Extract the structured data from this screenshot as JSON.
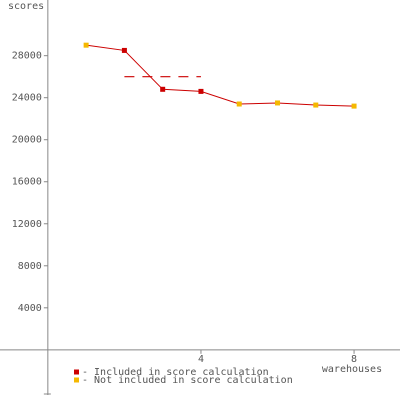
{
  "chart_data": {
    "type": "line",
    "y_label": "scores",
    "x_label": "warehouses",
    "x": [
      1,
      2,
      3,
      4,
      5,
      6,
      7,
      8
    ],
    "series": [
      {
        "color": "#cc0000",
        "values": [
          29000,
          28500,
          24800,
          24600,
          23400,
          23500,
          23300,
          23200
        ],
        "point_groups": [
          1,
          0,
          0,
          0,
          1,
          1,
          1,
          1
        ]
      }
    ],
    "legend": [
      {
        "name": "- Included in score calculation",
        "color": "#cc0000"
      },
      {
        "name": "- Not included in score calculation",
        "color": "#f5b800"
      }
    ],
    "score_line": {
      "value": 26000,
      "x": [
        2,
        4
      ],
      "color": "#cc0000"
    },
    "xlim": [
      -1.25,
      9.2
    ],
    "ylim": [
      -4300,
      33300
    ],
    "xticks": [
      4,
      8
    ],
    "yticks": [
      4000,
      8000,
      12000,
      16000,
      20000,
      24000,
      28000
    ],
    "grid": false
  }
}
